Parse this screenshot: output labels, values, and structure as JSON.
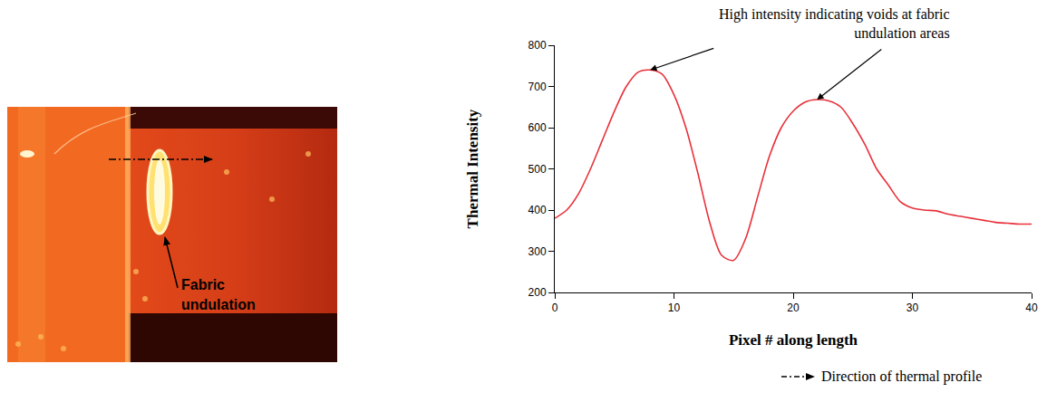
{
  "figure": {
    "image_label": "Fabric undulation",
    "direction_key": "Direction of thermal profile"
  },
  "chart_data": {
    "type": "line",
    "x": [
      0,
      1,
      2,
      3,
      4,
      5,
      6,
      7,
      8,
      9,
      10,
      11,
      12,
      13,
      14,
      15,
      16,
      17,
      18,
      19,
      20,
      21,
      22,
      23,
      24,
      25,
      26,
      27,
      28,
      29,
      30,
      31,
      32,
      33,
      34,
      35,
      36,
      37,
      38,
      39,
      40
    ],
    "values": [
      380,
      400,
      440,
      500,
      570,
      640,
      700,
      735,
      740,
      730,
      680,
      600,
      490,
      370,
      290,
      278,
      330,
      430,
      530,
      600,
      640,
      662,
      668,
      665,
      650,
      610,
      560,
      500,
      460,
      420,
      405,
      400,
      398,
      390,
      385,
      380,
      375,
      370,
      368,
      366,
      366
    ],
    "color": "#e8303a",
    "line_style": "solid",
    "xlim": [
      0,
      40
    ],
    "ylim": [
      200,
      800
    ],
    "xticks": [
      0,
      10,
      20,
      30,
      40
    ],
    "yticks": [
      200,
      300,
      400,
      500,
      600,
      700,
      800
    ],
    "x_label": "Pixel # along length",
    "y_label": "Thermal Intensity",
    "annotation": "High intensity indicating voids at fabric undulation areas",
    "grid": false
  }
}
